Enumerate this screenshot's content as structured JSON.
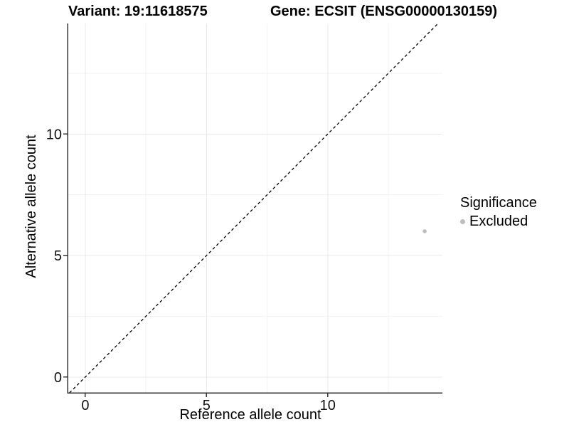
{
  "chart_data": {
    "type": "scatter",
    "titles": {
      "variant": "Variant: 19:11618575",
      "gene": "Gene: ECSIT (ENSG00000130159)"
    },
    "xlabel": "Reference allele count",
    "ylabel": "Alternative allele count",
    "xlim": [
      -0.73,
      14.73
    ],
    "ylim": [
      -0.65,
      14.55
    ],
    "xticks": [
      0,
      5,
      10
    ],
    "yticks": [
      0,
      5,
      10
    ],
    "minor_ticks_x": [
      2.5,
      7.5,
      12.5
    ],
    "minor_ticks_y": [
      2.5,
      7.5,
      12.5
    ],
    "grid": "major+minor",
    "legend_position": "right",
    "points": [
      {
        "x": 14,
        "y": 6,
        "significance": "Excluded"
      }
    ],
    "identity_line": {
      "slope": 1,
      "intercept": 0,
      "linetype": "dashed"
    },
    "legend": {
      "title": "Significance",
      "entries": [
        {
          "label": "Excluded",
          "color": "#bdbdbd"
        }
      ]
    },
    "colors": {
      "point": "#bdbdbd",
      "grid_major": "#e8e8e8",
      "grid_minor": "#f3f3f3",
      "axis": "#333333",
      "identity_line": "#000000",
      "text": "#000000"
    }
  }
}
